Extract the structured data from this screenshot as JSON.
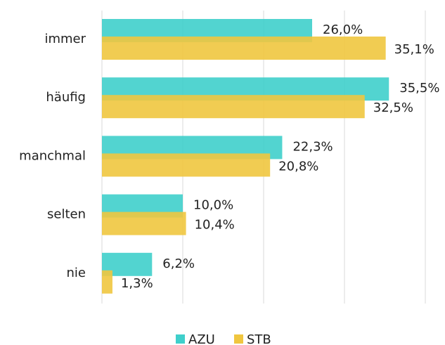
{
  "chart_data": {
    "type": "barh",
    "categories": [
      "immer",
      "häufig",
      "manchmal",
      "selten",
      "nie"
    ],
    "series": [
      {
        "name": "AZU",
        "color": "#3fcfcb",
        "values": [
          26.0,
          35.5,
          22.3,
          10.0,
          6.2
        ],
        "value_labels": [
          "26,0%",
          "35,5%",
          "22,3%",
          "10,0%",
          "6,2%"
        ]
      },
      {
        "name": "STB",
        "color": "#f0c63f",
        "values": [
          35.1,
          32.5,
          20.8,
          10.4,
          1.3
        ],
        "value_labels": [
          "35,1%",
          "32,5%",
          "20,8%",
          "10,4%",
          "1,3%"
        ]
      }
    ],
    "xlim": [
      0,
      40
    ],
    "xticks": [
      0,
      10,
      20,
      30,
      40
    ],
    "grid": true,
    "legend": "bottom"
  }
}
